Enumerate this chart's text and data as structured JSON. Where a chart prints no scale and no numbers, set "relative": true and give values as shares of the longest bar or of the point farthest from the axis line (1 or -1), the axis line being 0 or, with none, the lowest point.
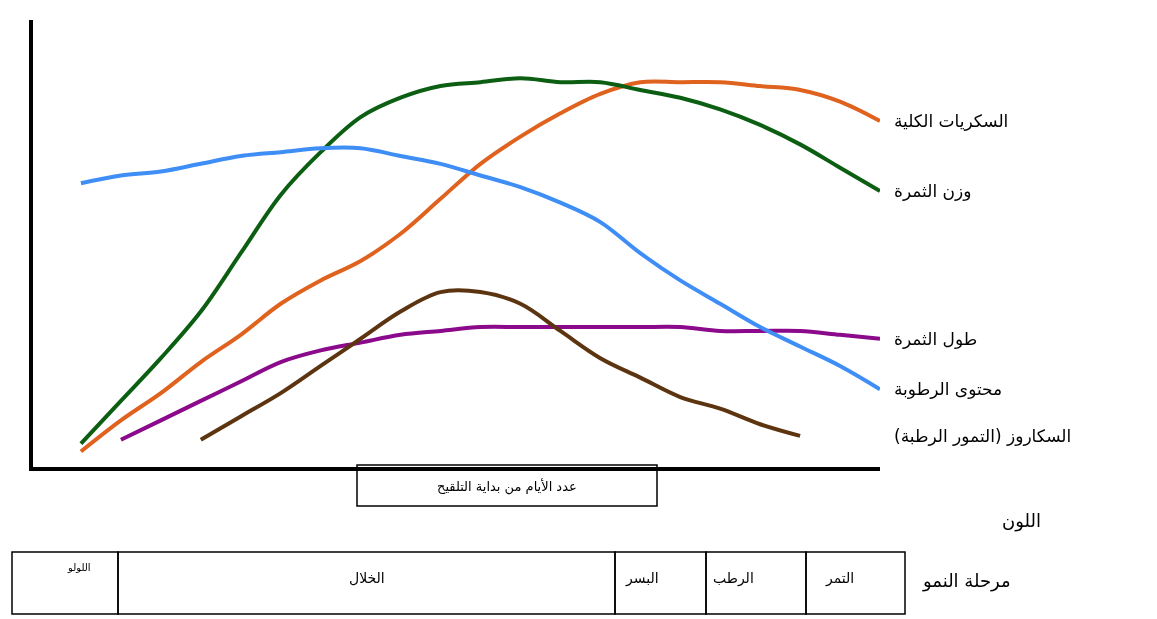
{
  "chart_data": {
    "type": "line",
    "relative": true,
    "xlabel": "عدد الأيام من بداية التلقيح",
    "categories": [
      null,
      null,
      null,
      null,
      null,
      null,
      null,
      null,
      null,
      null,
      null,
      null,
      null,
      null,
      null,
      null,
      null,
      null,
      null,
      null,
      null
    ],
    "series": [
      {
        "name": "السكريات الكلية",
        "color": "#e0621f",
        "values": [
          0.04,
          0.12,
          0.19,
          0.27,
          0.34,
          0.42,
          0.48,
          0.53,
          0.6,
          0.69,
          0.78,
          0.85,
          0.91,
          0.96,
          0.99,
          0.99,
          0.99,
          0.98,
          0.97,
          0.94,
          0.89
        ]
      },
      {
        "name": "وزن الثمرة",
        "color": "#0b5e12",
        "values": [
          0.06,
          0.17,
          0.28,
          0.4,
          0.55,
          0.7,
          0.81,
          0.9,
          0.95,
          0.98,
          0.99,
          1.0,
          0.99,
          0.99,
          0.97,
          0.95,
          0.92,
          0.88,
          0.83,
          0.77,
          0.71
        ]
      },
      {
        "name": "طول الثمرة",
        "color": "#8b0a8c",
        "values": [
          null,
          0.07,
          0.12,
          0.17,
          0.22,
          0.27,
          0.3,
          0.32,
          0.34,
          0.35,
          0.36,
          0.36,
          0.36,
          0.36,
          0.36,
          0.36,
          0.35,
          0.35,
          0.35,
          0.34,
          0.33
        ]
      },
      {
        "name": "محتوى الرطوبة",
        "color": "#3f8ef5",
        "values": [
          0.73,
          0.75,
          0.76,
          0.78,
          0.8,
          0.81,
          0.82,
          0.82,
          0.8,
          0.78,
          0.75,
          0.72,
          0.68,
          0.63,
          0.55,
          0.48,
          0.42,
          0.36,
          0.31,
          0.26,
          0.2
        ]
      },
      {
        "name": "السكاروز (التمور الرطبة)",
        "color": "#5c3510",
        "values": [
          null,
          null,
          null,
          0.07,
          0.13,
          0.19,
          0.26,
          0.33,
          0.4,
          0.45,
          0.45,
          0.42,
          0.35,
          0.28,
          0.23,
          0.18,
          0.15,
          0.11,
          0.08,
          null,
          null
        ]
      }
    ],
    "annotations": [
      "اللون",
      "مرحلة النمو",
      "اللولو",
      "الخلال",
      "البسر",
      "الرطب",
      "التمر"
    ],
    "legend": false
  }
}
